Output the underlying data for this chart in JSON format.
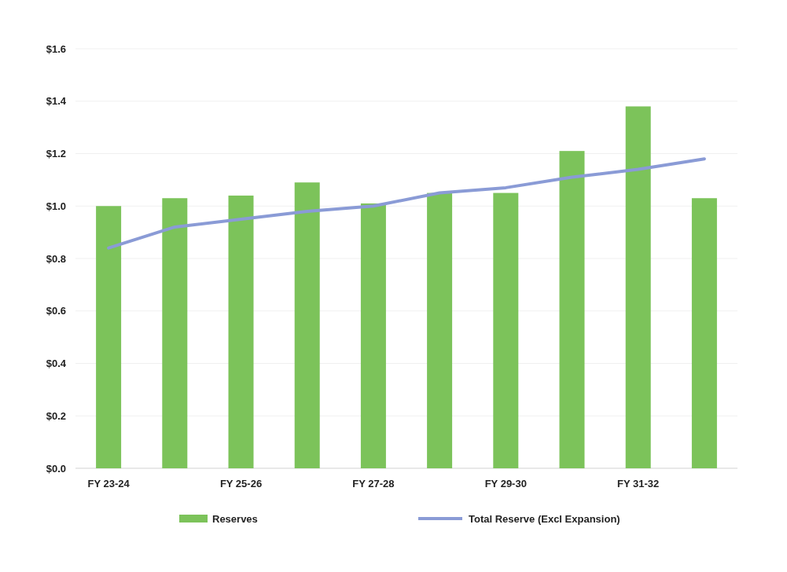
{
  "chart_data": {
    "type": "bar",
    "categories": [
      "FY 23-24",
      null,
      "FY 25-26",
      null,
      "FY 27-28",
      null,
      "FY 29-30",
      null,
      "FY 31-32",
      null
    ],
    "series": [
      {
        "name": "Reserves",
        "color": "#7cc35a",
        "values": [
          1.0,
          1.03,
          1.04,
          1.09,
          1.01,
          1.05,
          1.05,
          1.21,
          1.38,
          1.03
        ]
      },
      {
        "name": "Total Reserve (Excl Expansion)",
        "type": "line",
        "color": "#8a9bd6",
        "values": [
          0.84,
          0.92,
          0.95,
          0.98,
          1.0,
          1.05,
          1.07,
          1.11,
          1.14,
          1.18
        ]
      }
    ],
    "ylim": [
      0,
      1.6
    ],
    "yticks": [
      {
        "value": 0,
        "label": "$0.0"
      },
      {
        "value": 0.2,
        "label": "$0.2"
      },
      {
        "value": 0.4,
        "label": "$0.4"
      },
      {
        "value": 0.6,
        "label": "$0.6"
      },
      {
        "value": 0.8,
        "label": "$0.8"
      },
      {
        "value": 1.0,
        "label": "$1.0"
      },
      {
        "value": 1.2,
        "label": "$1.2"
      },
      {
        "value": 1.4,
        "label": "$1.4"
      },
      {
        "value": 1.6,
        "label": "$1.6"
      }
    ],
    "grid": "y",
    "legend": "bottom"
  }
}
